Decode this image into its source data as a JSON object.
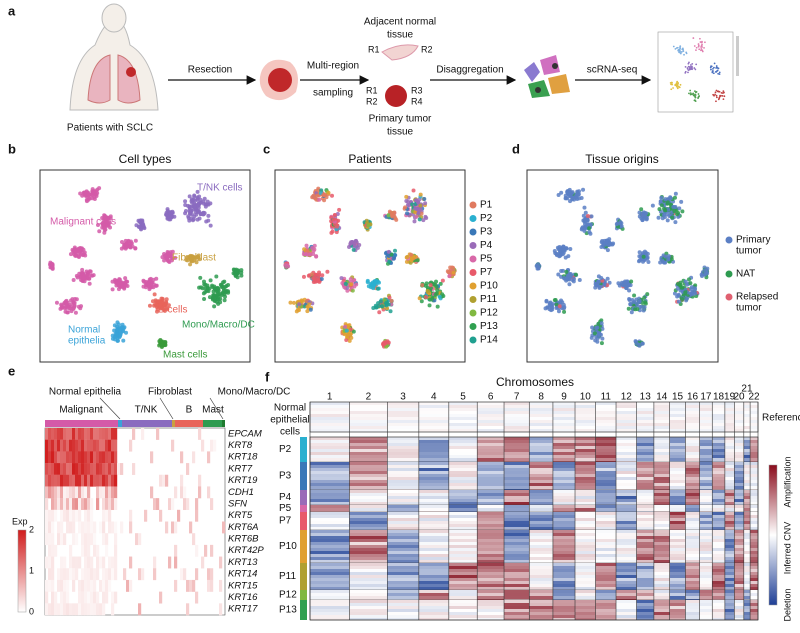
{
  "panel_a": {
    "label": "a",
    "patient": "Patients with SCLC",
    "resection": "Resection",
    "sampling": [
      "Multi-region",
      "sampling"
    ],
    "normal_tissue": {
      "title": [
        "Adjacent normal",
        "tissue"
      ],
      "regions": [
        "R1",
        "R2"
      ]
    },
    "tumor_tissue": {
      "title": [
        "Primary tumor",
        "tissue"
      ],
      "regions": [
        "R1",
        "R3",
        "R2",
        "R4"
      ]
    },
    "disaggregation": "Disaggregation",
    "sequencing": "scRNA-seq"
  },
  "panel_b": {
    "label": "b",
    "title": "Cell types",
    "cell_labels": [
      [
        "T/NK cells"
      ],
      [
        "Malignant cells"
      ],
      [
        "Fibroblast"
      ],
      [
        "B cells"
      ],
      [
        "Mono/Macro/DC"
      ],
      [
        "Normal",
        "epithelia"
      ],
      [
        "Mast cells"
      ]
    ]
  },
  "panel_c": {
    "label": "c",
    "title": "Patients",
    "legend": [
      {
        "name": "P1",
        "color": "#e07a5f"
      },
      {
        "name": "P2",
        "color": "#2ab0d0"
      },
      {
        "name": "P3",
        "color": "#3a78b8"
      },
      {
        "name": "P4",
        "color": "#9a6bb8"
      },
      {
        "name": "P5",
        "color": "#d868a8"
      },
      {
        "name": "P7",
        "color": "#e85a6a"
      },
      {
        "name": "P10",
        "color": "#e0a030"
      },
      {
        "name": "P11",
        "color": "#b0a030"
      },
      {
        "name": "P12",
        "color": "#80b840"
      },
      {
        "name": "P13",
        "color": "#30a050"
      },
      {
        "name": "P14",
        "color": "#20a090"
      }
    ]
  },
  "panel_d": {
    "label": "d",
    "title": "Tissue origins",
    "legend": [
      {
        "lines": [
          "Primary",
          "tumor"
        ],
        "color": "#5b7fc4"
      },
      {
        "lines": [
          "NAT"
        ],
        "color": "#2e9b50"
      },
      {
        "lines": [
          "Relapsed",
          "tumor"
        ],
        "color": "#e06070"
      }
    ]
  },
  "panel_e": {
    "label": "e",
    "groups_top": [
      "Normal epithelia",
      "Fibroblast",
      "Mono/Macro/DC"
    ],
    "groups_bottom": [
      "Malignant",
      "T/NK",
      "B",
      "Mast"
    ],
    "genes": [
      "EPCAM",
      "KRT8",
      "KRT18",
      "KRT7",
      "KRT19",
      "CDH1",
      "SFN",
      "KRT5",
      "KRT6A",
      "KRT6B",
      "KRT42P",
      "KRT13",
      "KRT14",
      "KRT15",
      "KRT16",
      "KRT17"
    ],
    "legend": {
      "title": "Exp",
      "lim": [
        0,
        2
      ],
      "ticks": [
        2,
        1,
        0
      ]
    }
  },
  "panel_f": {
    "label": "f",
    "title": "Chromosomes",
    "chromosomes": [
      "1",
      "2",
      "3",
      "4",
      "5",
      "6",
      "7",
      "8",
      "9",
      "10",
      "11",
      "12",
      "13",
      "14",
      "15",
      "16",
      "17",
      "18",
      "19",
      "20",
      "21",
      "22"
    ],
    "reference_label": [
      "Normal",
      "epithelial",
      "cells"
    ],
    "references": "References",
    "patients": [
      {
        "name": "P2",
        "color": "#2ab0d0"
      },
      {
        "name": "P3",
        "color": "#3a78b8"
      },
      {
        "name": "P4",
        "color": "#9a6bb8"
      },
      {
        "name": "P5",
        "color": "#d868a8"
      },
      {
        "name": "P7",
        "color": "#e85a6a"
      },
      {
        "name": "P10",
        "color": "#e0a030"
      },
      {
        "name": "P11",
        "color": "#b0a030"
      },
      {
        "name": "P12",
        "color": "#80b840"
      },
      {
        "name": "P13",
        "color": "#30a050"
      }
    ],
    "colorbar": {
      "title": "Inferred CNV",
      "top": "Amplification",
      "bottom": "Deletion"
    }
  }
}
